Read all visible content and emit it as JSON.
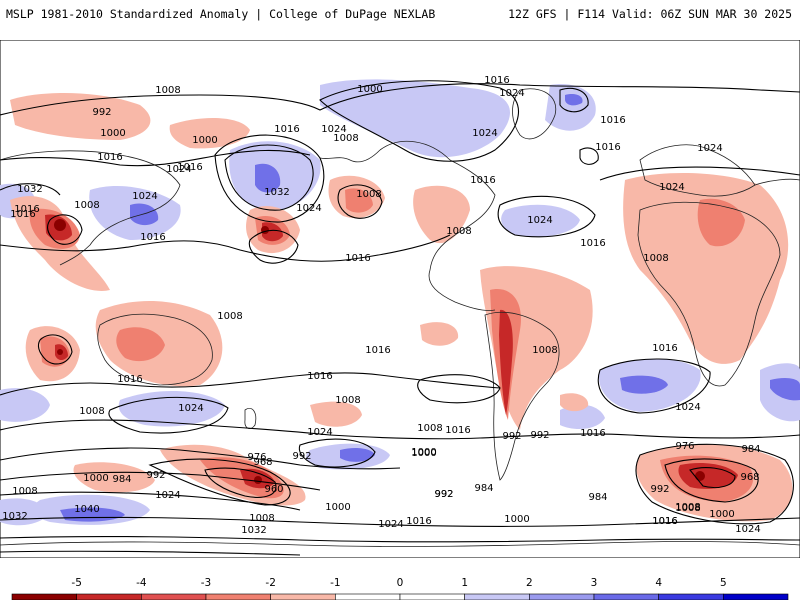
{
  "header": {
    "left": "MSLP 1981-2010 Standardized Anomaly | College of DuPage NEXLAB",
    "right": "12Z GFS | F114 Valid: 06Z SUN MAR 30 2025"
  },
  "colorbar": {
    "ticks": [
      "-5",
      "-4",
      "-3",
      "-2",
      "-1",
      "0",
      "1",
      "2",
      "3",
      "4",
      "5"
    ],
    "colors": [
      "#8b0000",
      "#c62828",
      "#e05050",
      "#ef8070",
      "#f8b8a8",
      "#ffffff",
      "#ffffff",
      "#c8c8f5",
      "#9a9aee",
      "#6a6ae8",
      "#3a3ae0",
      "#0000c8"
    ]
  },
  "isobar_labels": [
    {
      "text": "1008"
    },
    {
      "text": "992"
    },
    {
      "text": "1000"
    },
    {
      "text": "1016"
    },
    {
      "text": "1016"
    },
    {
      "text": "1000"
    },
    {
      "text": "1032"
    },
    {
      "text": "1024"
    },
    {
      "text": "1024"
    },
    {
      "text": "1008"
    },
    {
      "text": "1024"
    },
    {
      "text": "1016"
    },
    {
      "text": "1024"
    },
    {
      "text": "1016"
    },
    {
      "text": "1016"
    },
    {
      "text": "1008"
    },
    {
      "text": "1000"
    },
    {
      "text": "1016"
    },
    {
      "text": "1024"
    },
    {
      "text": "1016"
    },
    {
      "text": "1032"
    },
    {
      "text": "1024"
    },
    {
      "text": "1016"
    },
    {
      "text": "1008"
    },
    {
      "text": "1016"
    },
    {
      "text": "1024"
    },
    {
      "text": "1016"
    },
    {
      "text": "1024"
    },
    {
      "text": "1024"
    },
    {
      "text": "1024"
    },
    {
      "text": "1016"
    },
    {
      "text": "1008"
    },
    {
      "text": "1016"
    },
    {
      "text": "1008"
    },
    {
      "text": "1008"
    },
    {
      "text": "1008"
    },
    {
      "text": "1016"
    },
    {
      "text": "1016"
    },
    {
      "text": "1016"
    },
    {
      "text": "1016"
    },
    {
      "text": "1024"
    },
    {
      "text": "1008"
    },
    {
      "text": "1024"
    },
    {
      "text": "1016"
    },
    {
      "text": "1016"
    },
    {
      "text": "1008"
    },
    {
      "text": "992"
    },
    {
      "text": "1000"
    },
    {
      "text": "1008"
    },
    {
      "text": "1000"
    },
    {
      "text": "976"
    },
    {
      "text": "968"
    },
    {
      "text": "992"
    },
    {
      "text": "1000"
    },
    {
      "text": "984"
    },
    {
      "text": "992"
    },
    {
      "text": "960"
    },
    {
      "text": "1024"
    },
    {
      "text": "1040"
    },
    {
      "text": "1008"
    },
    {
      "text": "1032"
    },
    {
      "text": "1008"
    },
    {
      "text": "1000"
    },
    {
      "text": "1024"
    },
    {
      "text": "1016"
    },
    {
      "text": "1032"
    },
    {
      "text": "992"
    },
    {
      "text": "984"
    },
    {
      "text": "992"
    },
    {
      "text": "1000"
    },
    {
      "text": "1008"
    },
    {
      "text": "984"
    },
    {
      "text": "1016"
    },
    {
      "text": "976"
    },
    {
      "text": "984"
    },
    {
      "text": "968"
    },
    {
      "text": "992"
    },
    {
      "text": "1000"
    },
    {
      "text": "1008"
    },
    {
      "text": "1016"
    },
    {
      "text": "1024"
    },
    {
      "text": "992"
    }
  ]
}
